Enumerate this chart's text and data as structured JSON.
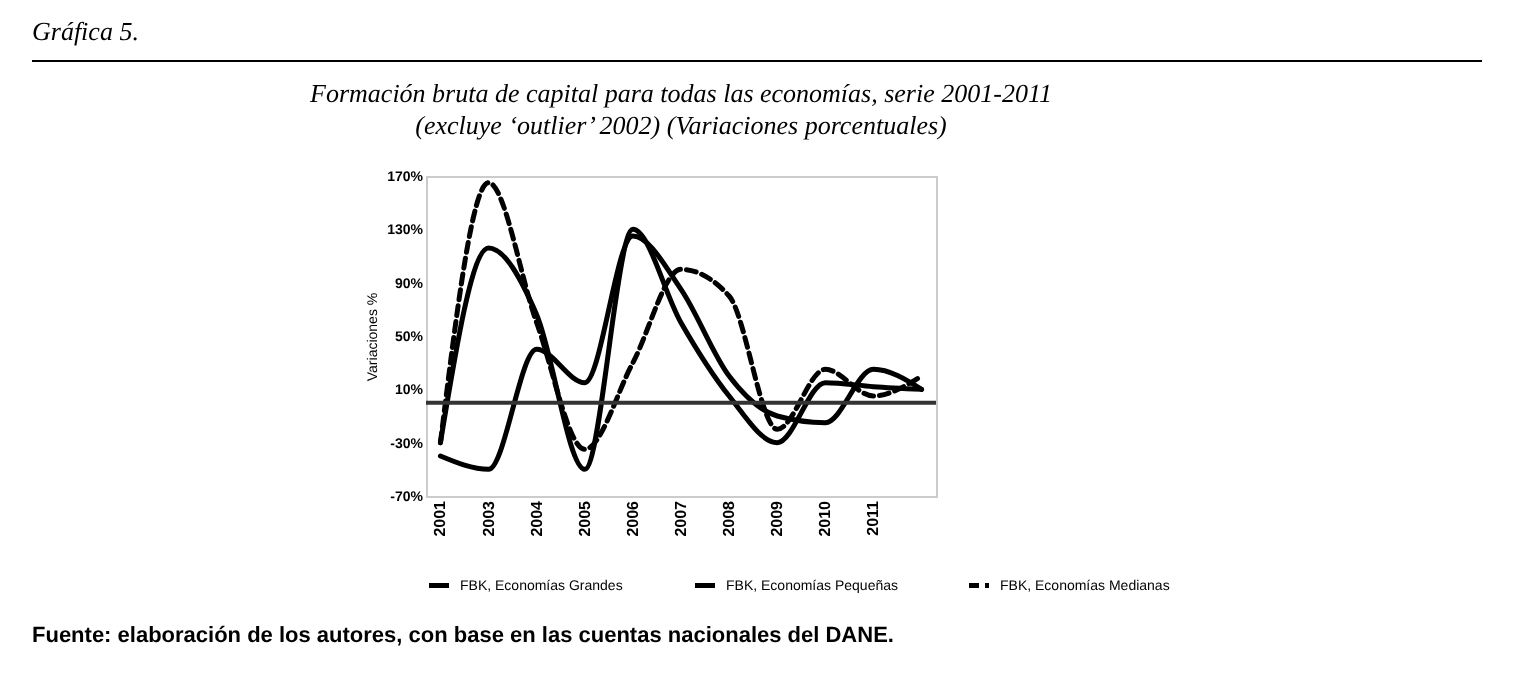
{
  "chart_data": {
    "type": "line",
    "title": "Formación bruta de capital para todas las economías, serie 2001-2011",
    "subtitle": "(excluye ‘outlier’ 2002)  (Variaciones porcentuales)",
    "ylabel": "Variaciones %",
    "annotations": [
      "Gráfica 5.",
      "Fuente: elaboración de los autores, con base en las cuentas nacionales del DANE."
    ],
    "categories": [
      "2001",
      "2003",
      "2004",
      "2005",
      "2006",
      "2007",
      "2008",
      "2009",
      "2010",
      "2011",
      null
    ],
    "series": [
      {
        "name": "FBK, Economías Grandes",
        "color": "#000000",
        "line_style": "solid",
        "values": [
          -30,
          116,
          66,
          -50,
          130,
          60,
          5,
          -30,
          15,
          12,
          10
        ]
      },
      {
        "name": "FBK, Economías Pequeñas",
        "color": "#000000",
        "line_style": "solid",
        "values": [
          -40,
          -50,
          40,
          15,
          125,
          85,
          20,
          -10,
          -15,
          25,
          10
        ]
      },
      {
        "name": "FBK, Economías Medianas",
        "color": "#000000",
        "line_style": "dashed",
        "values": [
          -30,
          165,
          60,
          -35,
          30,
          100,
          80,
          -20,
          25,
          5,
          20
        ]
      }
    ],
    "ylim": [
      -70,
      170
    ],
    "yticks": [
      {
        "value": -70,
        "label": "-70%"
      },
      {
        "value": -30,
        "label": "-30%"
      },
      {
        "value": 10,
        "label": "10%"
      },
      {
        "value": 50,
        "label": "50%"
      },
      {
        "value": 90,
        "label": "90%"
      },
      {
        "value": 130,
        "label": "130%"
      },
      {
        "value": 170,
        "label": "170%"
      }
    ],
    "ref_lines": [
      {
        "axis": "y",
        "value": 0,
        "color": "#333333"
      }
    ],
    "grid": false,
    "legend": "bottom"
  }
}
